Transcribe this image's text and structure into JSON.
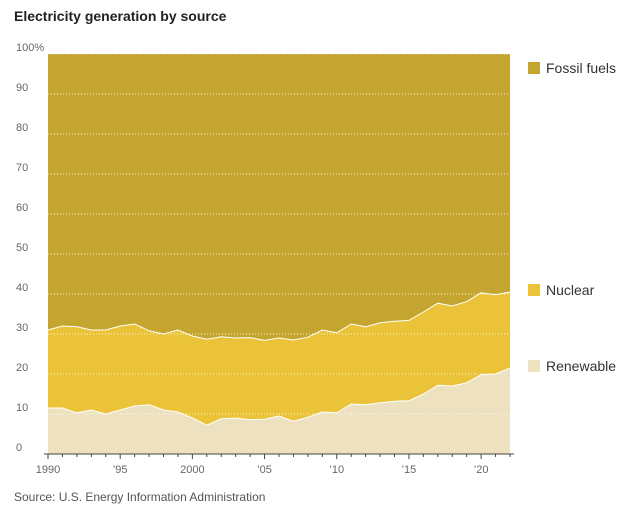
{
  "chart_data": {
    "type": "area",
    "title": "Electricity generation by source",
    "stacked": true,
    "percent": true,
    "ylim": [
      0,
      100
    ],
    "y_ticks": [
      0,
      10,
      20,
      30,
      40,
      50,
      60,
      70,
      80,
      90,
      100
    ],
    "y_tick_labels": [
      "0",
      "10",
      "20",
      "30",
      "40",
      "50",
      "60",
      "70",
      "80",
      "90",
      "100%"
    ],
    "xlim": [
      1990,
      2022
    ],
    "x_ticks": [
      1990,
      1995,
      2000,
      2005,
      2010,
      2015,
      2020
    ],
    "x_tick_labels": [
      "1990",
      "’95",
      "2000",
      "’05",
      "’10",
      "’15",
      "’20"
    ],
    "grid": true,
    "legend_placement": "right",
    "x": [
      1990,
      1991,
      1992,
      1993,
      1994,
      1995,
      1996,
      1997,
      1998,
      1999,
      2000,
      2001,
      2002,
      2003,
      2004,
      2005,
      2006,
      2007,
      2008,
      2009,
      2010,
      2011,
      2012,
      2013,
      2014,
      2015,
      2016,
      2017,
      2018,
      2019,
      2020,
      2021,
      2022
    ],
    "series": [
      {
        "name": "Renewable",
        "color": "#ede1bf",
        "values": [
          11.5,
          11.5,
          10.3,
          11,
          10,
          11,
          12,
          12.3,
          11,
          10.5,
          9,
          7.2,
          8.8,
          9,
          8.6,
          8.7,
          9.5,
          8.2,
          9.2,
          10.5,
          10.3,
          12.5,
          12.3,
          12.8,
          13.2,
          13.3,
          15,
          17.2,
          17,
          17.8,
          19.8,
          20,
          21.5
        ]
      },
      {
        "name": "Nuclear",
        "color": "#ebc339",
        "values": [
          19.5,
          20.5,
          21.5,
          20,
          21,
          21,
          20.5,
          18.5,
          19,
          20.5,
          20.5,
          21.5,
          20.5,
          20,
          20.5,
          19.7,
          19.5,
          20.3,
          20,
          20.5,
          20,
          20,
          19.5,
          20,
          20,
          20.1,
          20.5,
          20.5,
          20,
          20.3,
          20.5,
          19.8,
          19
        ]
      },
      {
        "name": "Fossil fuels",
        "color": "#c4a52f",
        "values": [
          69,
          68,
          68.2,
          69,
          69,
          68,
          67.5,
          69.2,
          70,
          69,
          70.5,
          71.3,
          70.7,
          71,
          70.9,
          71.6,
          71,
          71.5,
          70.8,
          69,
          69.7,
          67.5,
          68.2,
          67.2,
          66.8,
          66.6,
          64.5,
          62.3,
          63,
          61.9,
          59.7,
          60.2,
          59.5
        ]
      }
    ]
  },
  "source": "Source: U.S. Energy Information Administration"
}
